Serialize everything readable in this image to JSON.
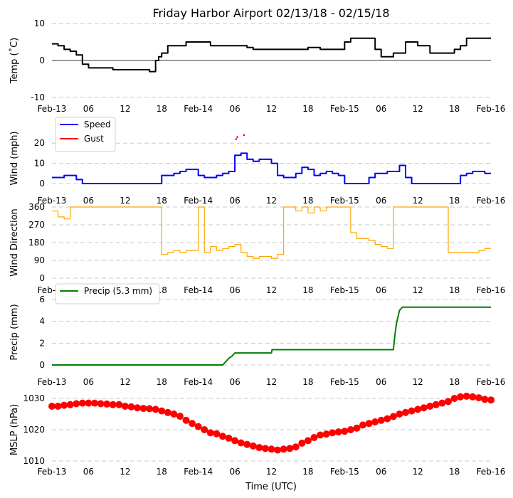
{
  "figure": {
    "title": "Friday Harbor Airport 02/13/18 - 02/15/18",
    "xlabel": "Time (UTC)"
  },
  "chart_data": [
    {
      "type": "line",
      "ylabel": "Temp ($^\\circ$C)",
      "ylabel_display": "Temp (˚C)",
      "ylim": [
        -10,
        10
      ],
      "yticks": [
        -10,
        0,
        10
      ],
      "grid": "horizontal dashed",
      "zero_line": true,
      "xlim": [
        "02/13 00:00",
        "02/16 00:00"
      ],
      "xtick_labels": [
        "Feb-13",
        "06",
        "12",
        "18",
        "Feb-14",
        "06",
        "12",
        "18",
        "Feb-15",
        "06",
        "12",
        "18",
        "Feb-16"
      ],
      "series": [
        {
          "color": "#000000",
          "x_hours": [
            0,
            1,
            2,
            3,
            4,
            5,
            6,
            8,
            10,
            12,
            14,
            16,
            17,
            17.5,
            18,
            19,
            20,
            22,
            24,
            26,
            28,
            30,
            32,
            33,
            35,
            37,
            38,
            40,
            42,
            44,
            46,
            48,
            49,
            50,
            51,
            52,
            53,
            54,
            56,
            58,
            60,
            62,
            63,
            65,
            66,
            67,
            68,
            70,
            72
          ],
          "values": [
            4.5,
            4,
            3,
            2.5,
            1.5,
            -1,
            -2,
            -2,
            -2.5,
            -2.5,
            -2.5,
            -3,
            0,
            1,
            2,
            4,
            4,
            5,
            5,
            4,
            4,
            4,
            3.5,
            3,
            3,
            3,
            3,
            3,
            3.5,
            3,
            3,
            5,
            6,
            6,
            6,
            6,
            3,
            1,
            2,
            5,
            4,
            2,
            2,
            2,
            3,
            4,
            6,
            6,
            6
          ]
        }
      ]
    },
    {
      "type": "line",
      "ylabel": "Wind (mph)",
      "ylim": [
        0,
        25
      ],
      "yticks": [
        0,
        10,
        20
      ],
      "grid": "horizontal dashed",
      "legend": "top-left",
      "xlim": [
        "02/13 00:00",
        "02/16 00:00"
      ],
      "xtick_labels": [
        "Feb-13",
        "06",
        "12",
        "18",
        "Feb-14",
        "06",
        "12",
        "18",
        "Feb-15",
        "06",
        "12",
        "18",
        "Feb-16"
      ],
      "series": [
        {
          "name": "Speed",
          "color": "#0000ff",
          "x_hours": [
            0,
            1,
            2,
            3,
            4,
            5,
            6,
            8,
            10,
            12,
            14,
            16,
            18,
            19,
            20,
            21,
            22,
            23,
            24,
            25,
            26,
            27,
            28,
            29,
            30,
            31,
            32,
            33,
            34,
            35,
            36,
            37,
            38,
            39,
            40,
            41,
            42,
            43,
            44,
            45,
            46,
            47,
            48,
            49,
            50,
            51,
            52,
            53,
            54,
            55,
            56,
            57,
            58,
            59,
            60,
            61,
            62,
            63,
            64,
            65,
            66,
            67,
            68,
            69,
            70,
            71,
            72
          ],
          "values": [
            3,
            3,
            4,
            4,
            2,
            0,
            0,
            0,
            0,
            0,
            0,
            0,
            4,
            4,
            5,
            6,
            7,
            7,
            4,
            3,
            3,
            4,
            5,
            6,
            14,
            15,
            12,
            11,
            12,
            12,
            10,
            4,
            3,
            3,
            5,
            8,
            7,
            4,
            5,
            6,
            5,
            4,
            0,
            0,
            0,
            0,
            3,
            5,
            5,
            6,
            6,
            9,
            3,
            0,
            0,
            0,
            0,
            0,
            0,
            0,
            0,
            4,
            5,
            6,
            6,
            5,
            5
          ]
        },
        {
          "name": "Gust",
          "color": "#ff0000",
          "x_hours": [
            30.2,
            30.4,
            31.5
          ],
          "values": [
            22,
            23,
            24
          ]
        }
      ]
    },
    {
      "type": "scatter",
      "ylabel": "Wind Direction",
      "ylim": [
        0,
        360
      ],
      "yticks": [
        0,
        90,
        180,
        270,
        360
      ],
      "grid": "horizontal dashed",
      "xlim": [
        "02/13 00:00",
        "02/16 00:00"
      ],
      "xtick_labels": [
        "Feb-13",
        "06",
        "12",
        "18",
        "Feb-14",
        "06",
        "12",
        "18",
        "Feb-15",
        "06",
        "12",
        "18",
        "Feb-16"
      ],
      "series": [
        {
          "color": "#ffa500",
          "x_hours": [
            0,
            1,
            2,
            3,
            4,
            5,
            6,
            8,
            10,
            12,
            14,
            16,
            17,
            18,
            19,
            20,
            21,
            22,
            23,
            24,
            25,
            26,
            27,
            28,
            29,
            30,
            31,
            32,
            33,
            34,
            35,
            36,
            37,
            38,
            39,
            40,
            41,
            42,
            43,
            44,
            45,
            46,
            47,
            48,
            49,
            50,
            51,
            52,
            53,
            54,
            55,
            56,
            57,
            58,
            59,
            60,
            61,
            62,
            63,
            64,
            65,
            66,
            67,
            68,
            69,
            70,
            71,
            72
          ],
          "values": [
            340,
            310,
            300,
            360,
            360,
            360,
            360,
            360,
            360,
            360,
            360,
            360,
            360,
            120,
            130,
            140,
            130,
            140,
            140,
            360,
            130,
            160,
            140,
            150,
            160,
            170,
            130,
            110,
            100,
            110,
            110,
            100,
            120,
            360,
            360,
            340,
            360,
            330,
            360,
            340,
            360,
            360,
            360,
            360,
            230,
            200,
            200,
            190,
            170,
            160,
            150,
            360,
            360,
            360,
            360,
            360,
            360,
            360,
            360,
            360,
            130,
            130,
            130,
            130,
            130,
            140,
            150,
            150
          ]
        }
      ]
    },
    {
      "type": "line",
      "ylabel": "Precip (mm)",
      "ylim": [
        0,
        6
      ],
      "yticks": [
        0,
        2,
        4,
        6
      ],
      "grid": "horizontal dashed",
      "legend": "top-left",
      "xlim": [
        "02/13 00:00",
        "02/16 00:00"
      ],
      "xtick_labels": [
        "Feb-13",
        "06",
        "12",
        "18",
        "Feb-14",
        "06",
        "12",
        "18",
        "Feb-15",
        "06",
        "12",
        "18",
        "Feb-16"
      ],
      "series": [
        {
          "name": "Precip (5.3 mm)",
          "color": "#008000",
          "x_hours": [
            0,
            28,
            28.5,
            29,
            29.5,
            30,
            36,
            36.1,
            42,
            48,
            56,
            56.2,
            56.5,
            57,
            57.5,
            60,
            66,
            72
          ],
          "values": [
            0,
            0,
            0.3,
            0.6,
            0.8,
            1.1,
            1.1,
            1.4,
            1.4,
            1.4,
            1.4,
            2.5,
            3.8,
            5.0,
            5.3,
            5.3,
            5.3,
            5.3
          ]
        }
      ]
    },
    {
      "type": "scatter",
      "ylabel": "MSLP (hPa)",
      "ylim": [
        1010,
        1030
      ],
      "yticks": [
        1010,
        1020,
        1030
      ],
      "grid": "horizontal dashed",
      "xlim": [
        "02/13 00:00",
        "02/16 00:00"
      ],
      "xtick_labels": [
        "Feb-13",
        "06",
        "12",
        "18",
        "Feb-14",
        "06",
        "12",
        "18",
        "Feb-15",
        "06",
        "12",
        "18",
        "Feb-16"
      ],
      "series": [
        {
          "color": "#ff0000",
          "x_hours": [
            0,
            1,
            2,
            3,
            4,
            5,
            6,
            7,
            8,
            9,
            10,
            11,
            12,
            13,
            14,
            15,
            16,
            17,
            18,
            19,
            20,
            21,
            22,
            23,
            24,
            25,
            26,
            27,
            28,
            29,
            30,
            31,
            32,
            33,
            34,
            35,
            36,
            37,
            38,
            39,
            40,
            41,
            42,
            43,
            44,
            45,
            46,
            47,
            48,
            49,
            50,
            51,
            52,
            53,
            54,
            55,
            56,
            57,
            58,
            59,
            60,
            61,
            62,
            63,
            64,
            65,
            66,
            67,
            68,
            69,
            70,
            71,
            72
          ],
          "values": [
            1027.5,
            1027.5,
            1027.8,
            1028,
            1028.3,
            1028.5,
            1028.5,
            1028.5,
            1028.3,
            1028.2,
            1028,
            1028,
            1027.5,
            1027.3,
            1027,
            1026.8,
            1026.7,
            1026.5,
            1026,
            1025.5,
            1025,
            1024.3,
            1023,
            1022,
            1021,
            1020,
            1019,
            1018.7,
            1017.9,
            1017.3,
            1016.5,
            1015.8,
            1015.3,
            1014.8,
            1014.3,
            1014,
            1013.8,
            1013.5,
            1013.8,
            1014,
            1014.5,
            1015.7,
            1016.5,
            1017.5,
            1018.3,
            1018.6,
            1019,
            1019.3,
            1019.5,
            1020,
            1020.5,
            1021.5,
            1022,
            1022.5,
            1023,
            1023.5,
            1024.2,
            1025,
            1025.5,
            1026,
            1026.5,
            1027,
            1027.5,
            1028,
            1028.5,
            1029,
            1030,
            1030.5,
            1030.7,
            1030.5,
            1030.2,
            1029.7,
            1029.5
          ]
        }
      ]
    }
  ]
}
